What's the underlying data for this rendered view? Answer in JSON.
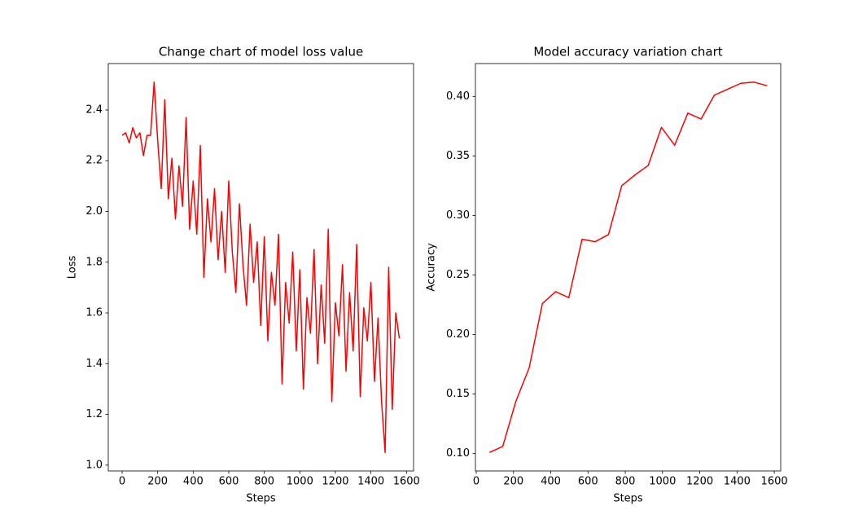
{
  "chart_data": [
    {
      "type": "line",
      "title": "Change chart of model loss value",
      "x_label": "Steps",
      "y_label": "Loss",
      "x": [
        0,
        20,
        40,
        60,
        80,
        100,
        120,
        140,
        160,
        180,
        200,
        220,
        240,
        260,
        280,
        300,
        320,
        340,
        360,
        380,
        400,
        420,
        440,
        460,
        480,
        500,
        520,
        540,
        560,
        580,
        600,
        620,
        640,
        660,
        680,
        700,
        720,
        740,
        760,
        780,
        800,
        820,
        840,
        860,
        880,
        900,
        920,
        940,
        960,
        980,
        1000,
        1020,
        1040,
        1060,
        1080,
        1100,
        1120,
        1140,
        1160,
        1180,
        1200,
        1220,
        1240,
        1260,
        1280,
        1300,
        1320,
        1340,
        1360,
        1380,
        1400,
        1420,
        1440,
        1460,
        1480,
        1500,
        1520,
        1540,
        1560
      ],
      "series": [
        {
          "color": "#ff0000",
          "values": [
            2.3,
            2.31,
            2.27,
            2.33,
            2.29,
            2.31,
            2.22,
            2.3,
            2.3,
            2.51,
            2.28,
            2.09,
            2.44,
            2.05,
            2.21,
            1.97,
            2.18,
            2.02,
            2.37,
            1.93,
            2.12,
            1.91,
            2.26,
            1.74,
            2.05,
            1.88,
            2.09,
            1.81,
            2.0,
            1.76,
            2.12,
            1.84,
            1.68,
            2.03,
            1.79,
            1.63,
            1.95,
            1.72,
            1.88,
            1.55,
            1.9,
            1.49,
            1.76,
            1.63,
            1.91,
            1.32,
            1.72,
            1.56,
            1.84,
            1.45,
            1.77,
            1.3,
            1.66,
            1.52,
            1.85,
            1.4,
            1.71,
            1.48,
            1.93,
            1.25,
            1.64,
            1.51,
            1.79,
            1.37,
            1.68,
            1.45,
            1.87,
            1.27,
            1.62,
            1.49,
            1.72,
            1.33,
            1.58,
            1.25,
            1.05,
            1.78,
            1.22,
            1.6,
            1.5
          ]
        }
      ],
      "xlim": [
        -78,
        1640
      ],
      "ylim": [
        0.977,
        2.583
      ],
      "xticks": [
        0,
        200,
        400,
        600,
        800,
        1000,
        1200,
        1400,
        1600
      ],
      "yticks": [
        {
          "value": 1,
          "label": "1.0"
        },
        1.2,
        1.4,
        1.6,
        1.8,
        {
          "value": 2,
          "label": "2.0"
        },
        2.2,
        2.4
      ]
    },
    {
      "type": "line",
      "title": "Model accuracy variation chart",
      "x_label": "Steps",
      "y_label": "Accuracy",
      "x": [
        71,
        142,
        213,
        284,
        355,
        426,
        497,
        568,
        639,
        710,
        781,
        852,
        923,
        994,
        1065,
        1136,
        1207,
        1278,
        1349,
        1420,
        1491,
        1562
      ],
      "series": [
        {
          "color": "#ff0000",
          "values": [
            0.101,
            0.106,
            0.144,
            0.172,
            0.226,
            0.236,
            0.231,
            0.28,
            0.278,
            0.284,
            0.325,
            0.334,
            0.342,
            0.374,
            0.359,
            0.386,
            0.381,
            0.401,
            0.406,
            0.411,
            0.412,
            0.409
          ]
        }
      ],
      "xlim": [
        -4.5,
        1634.5
      ],
      "ylim": [
        0.0854,
        0.4276
      ],
      "xticks": [
        0,
        200,
        400,
        600,
        800,
        1000,
        1200,
        1400,
        1600
      ],
      "yticks": [
        {
          "value": 0.1,
          "label": "0.10"
        },
        0.15,
        {
          "value": 0.2,
          "label": "0.20"
        },
        0.25,
        {
          "value": 0.3,
          "label": "0.30"
        },
        0.35,
        {
          "value": 0.4,
          "label": "0.40"
        }
      ]
    }
  ]
}
